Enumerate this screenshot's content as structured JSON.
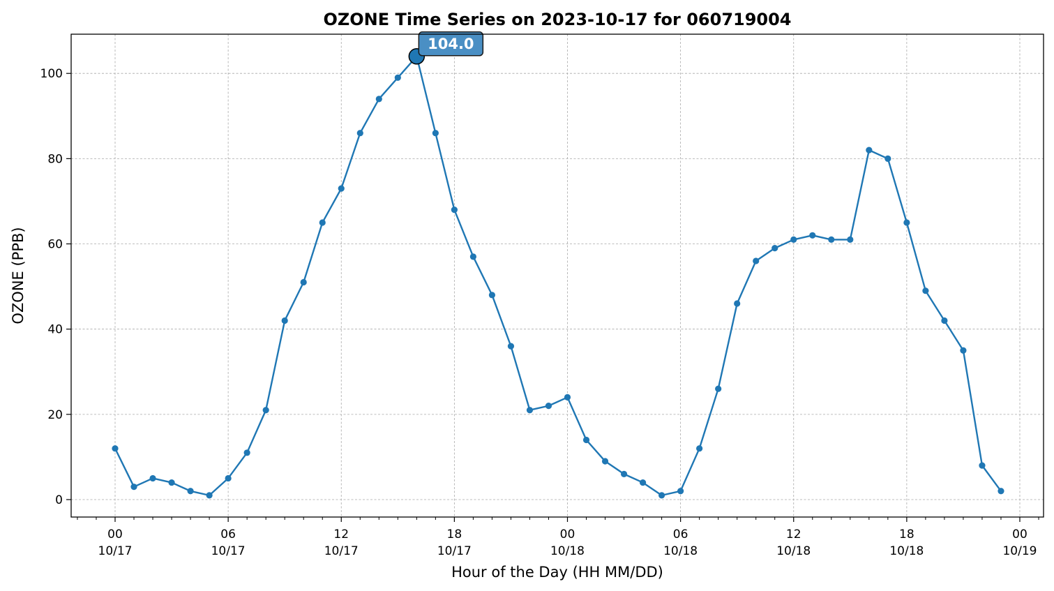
{
  "chart_data": {
    "type": "line",
    "title": "OZONE Time Series on 2023-10-17 for 060719004",
    "xlabel": "Hour of the Day (HH MM/DD)",
    "ylabel": "OZONE (PPB)",
    "ylim": [
      -4,
      109
    ],
    "y_ticks": [
      "0",
      "20",
      "40",
      "60",
      "80",
      "100"
    ],
    "x_ticks": [
      {
        "hour": 0,
        "hh": "00",
        "date": "10/17"
      },
      {
        "hour": 6,
        "hh": "06",
        "date": "10/17"
      },
      {
        "hour": 12,
        "hh": "12",
        "date": "10/17"
      },
      {
        "hour": 18,
        "hh": "18",
        "date": "10/17"
      },
      {
        "hour": 24,
        "hh": "00",
        "date": "10/18"
      },
      {
        "hour": 30,
        "hh": "06",
        "date": "10/18"
      },
      {
        "hour": 36,
        "hh": "12",
        "date": "10/18"
      },
      {
        "hour": 42,
        "hh": "18",
        "date": "10/18"
      },
      {
        "hour": 48,
        "hh": "00",
        "date": "10/19"
      }
    ],
    "grid": true,
    "line_color": "#1f77b4",
    "annotation_color": "#4a8fc4",
    "values": [
      12,
      3,
      5,
      4,
      2,
      1,
      5,
      11,
      21,
      42,
      51,
      65,
      73,
      86,
      94,
      99,
      104,
      86,
      68,
      57,
      48,
      36,
      21,
      22,
      24,
      14,
      9,
      6,
      4,
      1,
      2,
      12,
      26,
      46,
      56,
      59,
      61,
      62,
      61,
      61,
      82,
      80,
      65,
      49,
      42,
      35,
      8,
      2
    ],
    "peak": {
      "hour": 16,
      "value": 104,
      "label": "104.0"
    }
  }
}
